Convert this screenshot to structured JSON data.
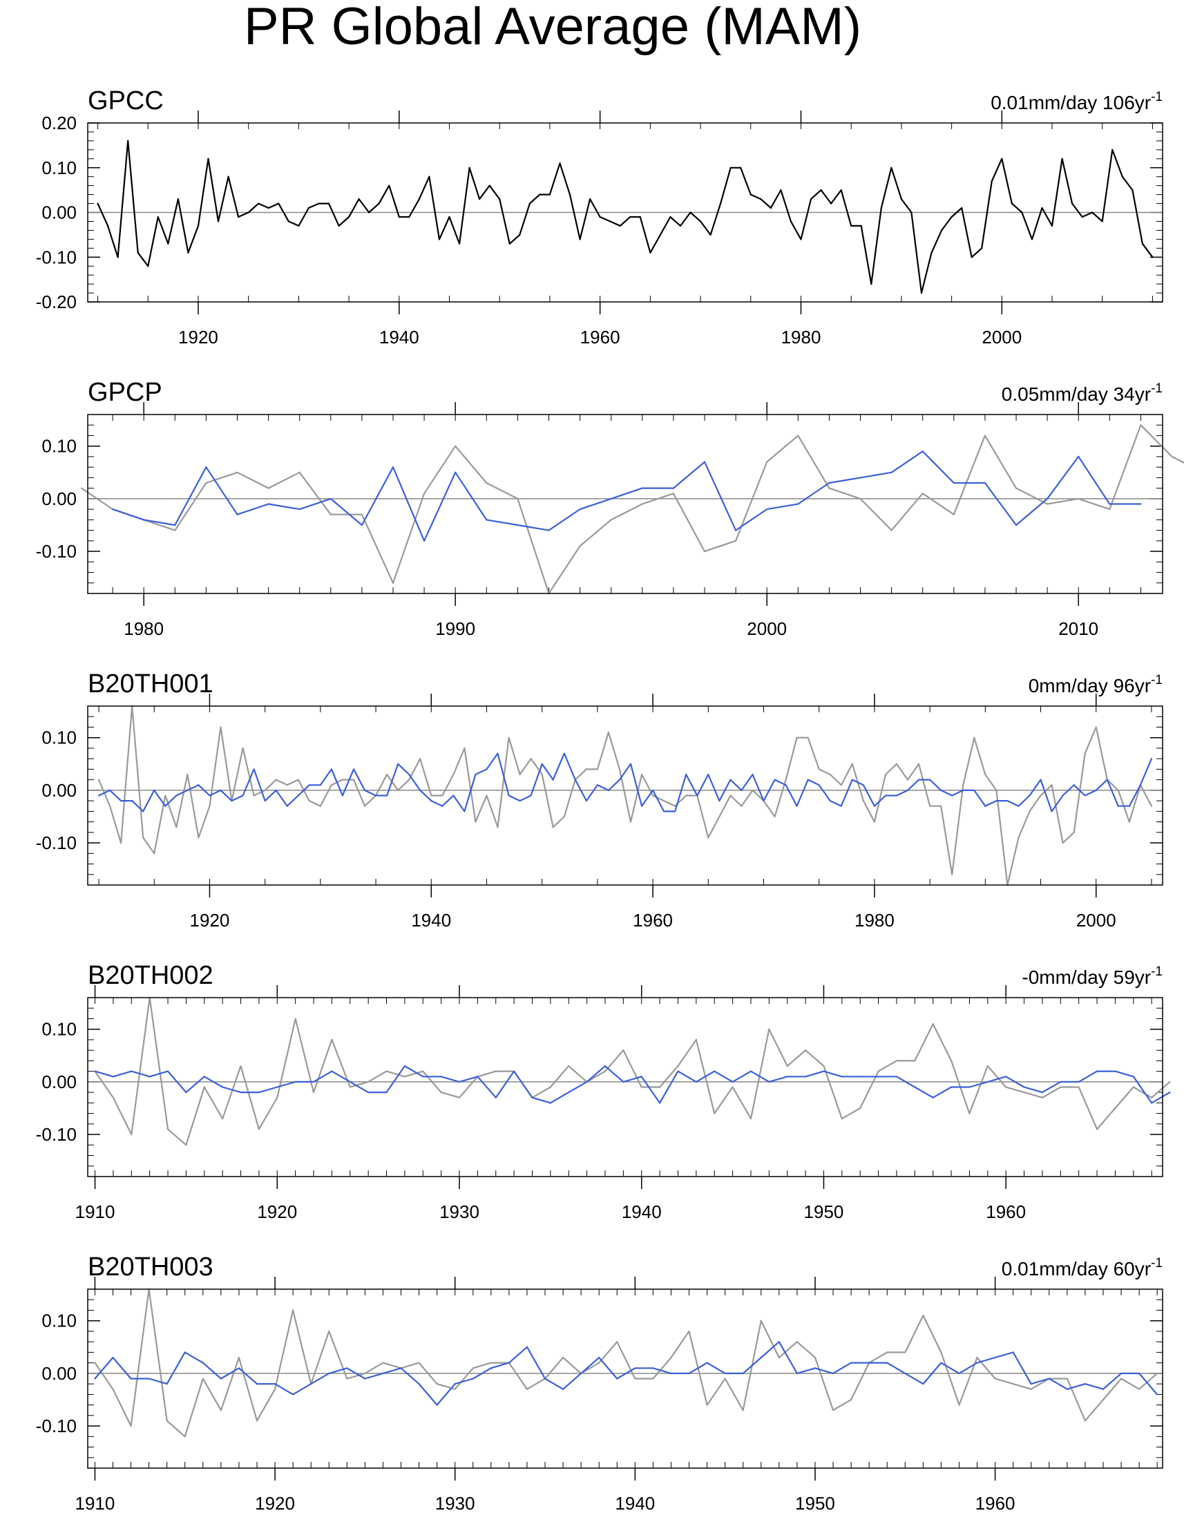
{
  "title": "PR Global Average (MAM)",
  "colors": {
    "observed": "#000000",
    "reference": "#999999",
    "model": "#3a5fd9",
    "zero_line": "#888888"
  },
  "chart_data": [
    {
      "name": "GPCC",
      "type": "line",
      "trend_text": "0.01mm/day 106yr",
      "trend_sup": "-1",
      "xlim": [
        1909,
        2016
      ],
      "ylim": [
        -0.2,
        0.2
      ],
      "yticks": [
        0.2,
        0.1,
        0.0,
        -0.1,
        -0.2
      ],
      "ytick_labels": [
        "0.20",
        "0.10",
        "0.00",
        "-0.10",
        "-0.20"
      ],
      "xticks": [
        1920,
        1940,
        1960,
        1980,
        2000
      ],
      "xtick_labels": [
        "1920",
        "1940",
        "1960",
        "1980",
        "2000"
      ],
      "series": [
        {
          "name": "GPCC",
          "color": "#000000",
          "x_start": 1910,
          "values": [
            0.02,
            -0.03,
            -0.1,
            0.16,
            -0.09,
            -0.12,
            -0.01,
            -0.07,
            0.03,
            -0.09,
            -0.03,
            0.12,
            -0.02,
            0.08,
            -0.01,
            0.0,
            0.02,
            0.01,
            0.02,
            -0.02,
            -0.03,
            0.01,
            0.02,
            0.02,
            -0.03,
            -0.01,
            0.03,
            0.0,
            0.02,
            0.06,
            -0.01,
            -0.01,
            0.03,
            0.08,
            -0.06,
            -0.01,
            -0.07,
            0.1,
            0.03,
            0.06,
            0.03,
            -0.07,
            -0.05,
            0.02,
            0.04,
            0.04,
            0.11,
            0.04,
            -0.06,
            0.03,
            -0.01,
            -0.02,
            -0.03,
            -0.01,
            -0.01,
            -0.09,
            -0.05,
            -0.01,
            -0.03,
            0.0,
            -0.02,
            -0.05,
            0.02,
            0.1,
            0.1,
            0.04,
            0.03,
            0.01,
            0.05,
            -0.02,
            -0.06,
            0.03,
            0.05,
            0.02,
            0.05,
            -0.03,
            -0.03,
            -0.16,
            0.01,
            0.1,
            0.03,
            0.0,
            -0.18,
            -0.09,
            -0.04,
            -0.01,
            0.01,
            -0.1,
            -0.08,
            0.07,
            0.12,
            0.02,
            0.0,
            -0.06,
            0.01,
            -0.03,
            0.12,
            0.02,
            -0.01,
            0.0,
            -0.02,
            0.14,
            0.08,
            0.05,
            -0.07,
            -0.1
          ]
        }
      ]
    },
    {
      "name": "GPCP",
      "type": "line",
      "trend_text": "0.05mm/day 34yr",
      "trend_sup": "-1",
      "xlim": [
        1978.2,
        2012.7
      ],
      "ylim": [
        -0.18,
        0.16
      ],
      "yticks": [
        0.1,
        0.0,
        -0.1
      ],
      "ytick_labels": [
        "0.10",
        "0.00",
        "-0.10"
      ],
      "xticks": [
        1980,
        1990,
        2000,
        2010
      ],
      "xtick_labels": [
        "1980",
        "1990",
        "2000",
        "2010"
      ],
      "series": [
        {
          "name": "GPCC (reference)",
          "color": "#999999",
          "x_start": 1978,
          "values": [
            0.02,
            -0.02,
            -0.04,
            -0.06,
            0.03,
            0.05,
            0.02,
            0.05,
            -0.03,
            -0.03,
            -0.16,
            0.01,
            0.1,
            0.03,
            0.0,
            -0.18,
            -0.09,
            -0.04,
            -0.01,
            0.01,
            -0.1,
            -0.08,
            0.07,
            0.12,
            0.02,
            0.0,
            -0.06,
            0.01,
            -0.03,
            0.12,
            0.02,
            -0.01,
            0.0,
            -0.02,
            0.14,
            0.08,
            0.05
          ]
        },
        {
          "name": "GPCP",
          "color": "#3a5fd9",
          "x_start": 1979,
          "values": [
            -0.02,
            -0.04,
            -0.05,
            0.06,
            -0.03,
            -0.01,
            -0.02,
            0.0,
            -0.05,
            0.06,
            -0.08,
            0.05,
            -0.04,
            -0.05,
            -0.06,
            -0.02,
            0.0,
            0.02,
            0.02,
            0.07,
            -0.06,
            -0.02,
            -0.01,
            0.03,
            0.04,
            0.05,
            0.09,
            0.03,
            0.03,
            -0.05,
            0.0,
            0.08,
            -0.01,
            -0.01
          ]
        }
      ]
    },
    {
      "name": "B20TH001",
      "type": "line",
      "trend_text": "0mm/day 96yr",
      "trend_sup": "-1",
      "xlim": [
        1909,
        2006
      ],
      "ylim": [
        -0.18,
        0.16
      ],
      "yticks": [
        0.1,
        0.0,
        -0.1
      ],
      "ytick_labels": [
        "0.10",
        "0.00",
        "-0.10"
      ],
      "xticks": [
        1920,
        1940,
        1960,
        1980,
        2000
      ],
      "xtick_labels": [
        "1920",
        "1940",
        "1960",
        "1980",
        "2000"
      ],
      "series": [
        {
          "name": "GPCC (reference)",
          "color": "#999999",
          "x_start": 1910,
          "values": [
            0.02,
            -0.03,
            -0.1,
            0.16,
            -0.09,
            -0.12,
            -0.01,
            -0.07,
            0.03,
            -0.09,
            -0.03,
            0.12,
            -0.02,
            0.08,
            -0.01,
            0.0,
            0.02,
            0.01,
            0.02,
            -0.02,
            -0.03,
            0.01,
            0.02,
            0.02,
            -0.03,
            -0.01,
            0.03,
            0.0,
            0.02,
            0.06,
            -0.01,
            -0.01,
            0.03,
            0.08,
            -0.06,
            -0.01,
            -0.07,
            0.1,
            0.03,
            0.06,
            0.03,
            -0.07,
            -0.05,
            0.02,
            0.04,
            0.04,
            0.11,
            0.04,
            -0.06,
            0.03,
            -0.01,
            -0.02,
            -0.03,
            -0.01,
            -0.01,
            -0.09,
            -0.05,
            -0.01,
            -0.03,
            0.0,
            -0.02,
            -0.05,
            0.02,
            0.1,
            0.1,
            0.04,
            0.03,
            0.01,
            0.05,
            -0.02,
            -0.06,
            0.03,
            0.05,
            0.02,
            0.05,
            -0.03,
            -0.03,
            -0.16,
            0.01,
            0.1,
            0.03,
            0.0,
            -0.18,
            -0.09,
            -0.04,
            -0.01,
            0.01,
            -0.1,
            -0.08,
            0.07,
            0.12,
            0.02,
            0.0,
            -0.06,
            0.01,
            -0.03
          ]
        },
        {
          "name": "B20TH001",
          "color": "#3a5fd9",
          "x_start": 1910,
          "values": [
            -0.01,
            0.0,
            -0.02,
            -0.02,
            -0.04,
            0.0,
            -0.03,
            -0.01,
            0.0,
            0.01,
            -0.01,
            0.0,
            -0.02,
            -0.01,
            0.04,
            -0.02,
            0.0,
            -0.03,
            -0.01,
            0.01,
            0.01,
            0.04,
            -0.01,
            0.04,
            0.0,
            -0.01,
            -0.01,
            0.05,
            0.03,
            0.0,
            -0.02,
            -0.03,
            -0.01,
            -0.04,
            0.03,
            0.04,
            0.07,
            -0.01,
            -0.02,
            -0.01,
            0.05,
            0.02,
            0.07,
            0.02,
            -0.02,
            0.01,
            0.0,
            0.02,
            0.05,
            -0.03,
            0.0,
            -0.04,
            -0.04,
            0.03,
            -0.01,
            0.03,
            -0.02,
            0.02,
            0.0,
            0.03,
            -0.02,
            0.02,
            0.01,
            -0.03,
            0.02,
            0.01,
            -0.02,
            -0.03,
            0.02,
            0.01,
            -0.03,
            -0.01,
            -0.01,
            0.0,
            0.02,
            0.02,
            0.0,
            -0.01,
            0.0,
            0.0,
            -0.03,
            -0.02,
            -0.02,
            -0.03,
            -0.01,
            0.02,
            -0.04,
            -0.01,
            0.01,
            -0.01,
            0.0,
            0.02,
            -0.03,
            -0.03,
            0.01,
            0.06
          ]
        }
      ]
    },
    {
      "name": "B20TH002",
      "type": "line",
      "trend_text": "-0mm/day 59yr",
      "trend_sup": "-1",
      "xlim": [
        1909.6,
        1968.6
      ],
      "ylim": [
        -0.18,
        0.16
      ],
      "yticks": [
        0.1,
        0.0,
        -0.1
      ],
      "ytick_labels": [
        "0.10",
        "0.00",
        "-0.10"
      ],
      "xticks": [
        1910,
        1920,
        1930,
        1940,
        1950,
        1960
      ],
      "xtick_labels": [
        "1910",
        "1920",
        "1930",
        "1940",
        "1950",
        "1960"
      ],
      "series": [
        {
          "name": "GPCC (reference)",
          "color": "#999999",
          "x_start": 1910,
          "values": [
            0.02,
            -0.03,
            -0.1,
            0.16,
            -0.09,
            -0.12,
            -0.01,
            -0.07,
            0.03,
            -0.09,
            -0.03,
            0.12,
            -0.02,
            0.08,
            -0.01,
            0.0,
            0.02,
            0.01,
            0.02,
            -0.02,
            -0.03,
            0.01,
            0.02,
            0.02,
            -0.03,
            -0.01,
            0.03,
            0.0,
            0.02,
            0.06,
            -0.01,
            -0.01,
            0.03,
            0.08,
            -0.06,
            -0.01,
            -0.07,
            0.1,
            0.03,
            0.06,
            0.03,
            -0.07,
            -0.05,
            0.02,
            0.04,
            0.04,
            0.11,
            0.04,
            -0.06,
            0.03,
            -0.01,
            -0.02,
            -0.03,
            -0.01,
            -0.01,
            -0.09,
            -0.05,
            -0.01,
            -0.03,
            0.0
          ]
        },
        {
          "name": "B20TH002",
          "color": "#3a5fd9",
          "x_start": 1910,
          "values": [
            0.02,
            0.01,
            0.02,
            0.01,
            0.02,
            -0.02,
            0.01,
            -0.01,
            -0.02,
            -0.02,
            -0.01,
            0.0,
            0.0,
            0.02,
            0.0,
            -0.02,
            -0.02,
            0.03,
            0.01,
            0.01,
            0.0,
            0.01,
            -0.03,
            0.02,
            -0.03,
            -0.04,
            -0.02,
            0.0,
            0.03,
            0.0,
            0.01,
            -0.04,
            0.02,
            0.0,
            0.02,
            0.0,
            0.02,
            0.0,
            0.01,
            0.01,
            0.02,
            0.01,
            0.01,
            0.01,
            0.01,
            -0.01,
            -0.03,
            -0.01,
            -0.01,
            0.0,
            0.01,
            -0.01,
            -0.02,
            0.0,
            0.0,
            0.02,
            0.02,
            0.01,
            -0.04,
            -0.02
          ]
        }
      ]
    },
    {
      "name": "B20TH003",
      "type": "line",
      "trend_text": "0.01mm/day 60yr",
      "trend_sup": "-1",
      "xlim": [
        1909.6,
        1969.3
      ],
      "ylim": [
        -0.18,
        0.16
      ],
      "yticks": [
        0.1,
        0.0,
        -0.1
      ],
      "ytick_labels": [
        "0.10",
        "0.00",
        "-0.10"
      ],
      "xticks": [
        1910,
        1920,
        1930,
        1940,
        1950,
        1960
      ],
      "xtick_labels": [
        "1910",
        "1920",
        "1930",
        "1940",
        "1950",
        "1960"
      ],
      "series": [
        {
          "name": "GPCC (reference)",
          "color": "#999999",
          "x_start": 1910,
          "values": [
            0.02,
            -0.03,
            -0.1,
            0.16,
            -0.09,
            -0.12,
            -0.01,
            -0.07,
            0.03,
            -0.09,
            -0.03,
            0.12,
            -0.02,
            0.08,
            -0.01,
            0.0,
            0.02,
            0.01,
            0.02,
            -0.02,
            -0.03,
            0.01,
            0.02,
            0.02,
            -0.03,
            -0.01,
            0.03,
            0.0,
            0.02,
            0.06,
            -0.01,
            -0.01,
            0.03,
            0.08,
            -0.06,
            -0.01,
            -0.07,
            0.1,
            0.03,
            0.06,
            0.03,
            -0.07,
            -0.05,
            0.02,
            0.04,
            0.04,
            0.11,
            0.04,
            -0.06,
            0.03,
            -0.01,
            -0.02,
            -0.03,
            -0.01,
            -0.01,
            -0.09,
            -0.05,
            -0.01,
            -0.03,
            0.0
          ]
        },
        {
          "name": "B20TH003",
          "color": "#3a5fd9",
          "x_start": 1910,
          "values": [
            -0.01,
            0.03,
            -0.01,
            -0.01,
            -0.02,
            0.04,
            0.02,
            -0.01,
            0.01,
            -0.02,
            -0.02,
            -0.04,
            -0.02,
            0.0,
            0.01,
            -0.01,
            0.0,
            0.01,
            -0.02,
            -0.06,
            -0.02,
            -0.01,
            0.01,
            0.02,
            0.05,
            -0.01,
            -0.03,
            0.0,
            0.03,
            -0.01,
            0.01,
            0.01,
            0.0,
            0.0,
            0.02,
            0.0,
            0.0,
            0.03,
            0.06,
            0.0,
            0.01,
            0.0,
            0.02,
            0.02,
            0.02,
            0.0,
            -0.02,
            0.02,
            0.0,
            0.02,
            0.03,
            0.04,
            -0.02,
            -0.01,
            -0.03,
            -0.02,
            -0.03,
            0.0,
            0.0,
            -0.04
          ]
        }
      ]
    }
  ]
}
